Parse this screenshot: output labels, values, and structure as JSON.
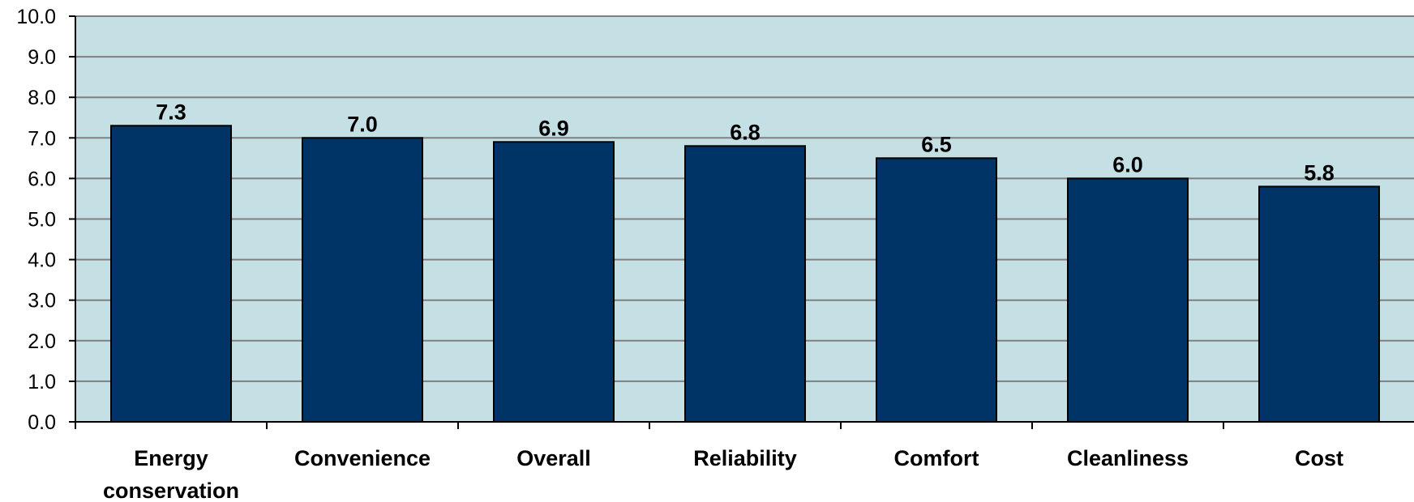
{
  "chart_data": {
    "type": "bar",
    "categories": [
      [
        "Energy",
        "conservation"
      ],
      [
        "Convenience"
      ],
      [
        "Overall"
      ],
      [
        "Reliability"
      ],
      [
        "Comfort"
      ],
      [
        "Cleanliness"
      ],
      [
        "Cost"
      ]
    ],
    "values": [
      7.3,
      7.0,
      6.9,
      6.8,
      6.5,
      6.0,
      5.8
    ],
    "data_labels": [
      "7.3",
      "7.0",
      "6.9",
      "6.8",
      "6.5",
      "6.0",
      "5.8"
    ],
    "ylim": [
      0,
      10
    ],
    "y_ticks": [
      "0.0",
      "1.0",
      "2.0",
      "3.0",
      "4.0",
      "5.0",
      "6.0",
      "7.0",
      "8.0",
      "9.0",
      "10.0"
    ],
    "grid": true,
    "legend": "none",
    "colors": {
      "plot_background": "#c5e0e5",
      "bar_fill": "#003366",
      "bar_stroke": "#000000",
      "gridline": "#808080"
    }
  }
}
